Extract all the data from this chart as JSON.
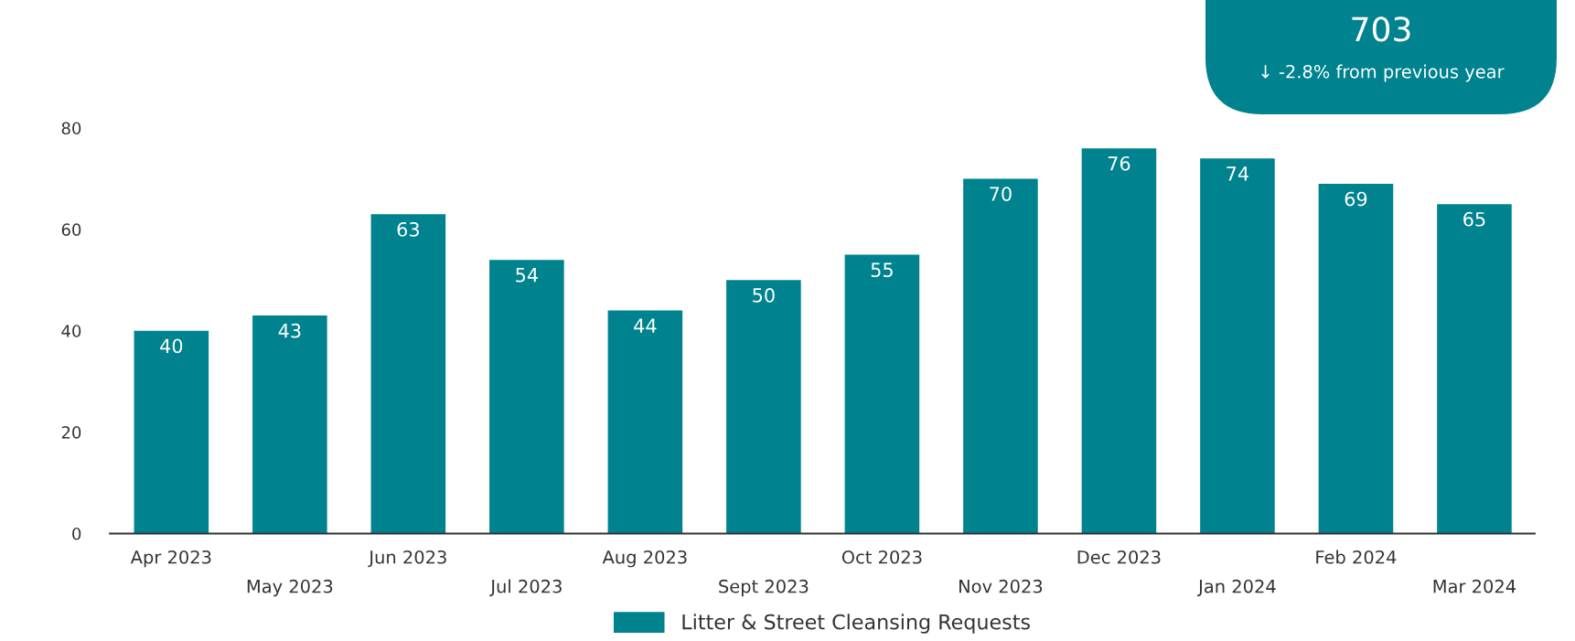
{
  "chart_data": {
    "type": "bar",
    "categories": [
      "Apr 2023",
      "May 2023",
      "Jun 2023",
      "Jul 2023",
      "Aug 2023",
      "Sept 2023",
      "Oct 2023",
      "Nov 2023",
      "Dec 2023",
      "Jan 2024",
      "Feb 2024",
      "Mar 2024"
    ],
    "series": [
      {
        "name": "Litter & Street Cleansing Requests",
        "color": "#00838f",
        "values": [
          40,
          43,
          63,
          54,
          44,
          50,
          55,
          70,
          76,
          74,
          69,
          65
        ]
      }
    ],
    "ylim": [
      0,
      80
    ],
    "yticks": [
      0,
      20,
      40,
      60,
      80
    ],
    "grid": false,
    "legend": "bottom",
    "data_labels": true,
    "annotations": [
      "703",
      "↓ -2.8% from previous year"
    ]
  }
}
